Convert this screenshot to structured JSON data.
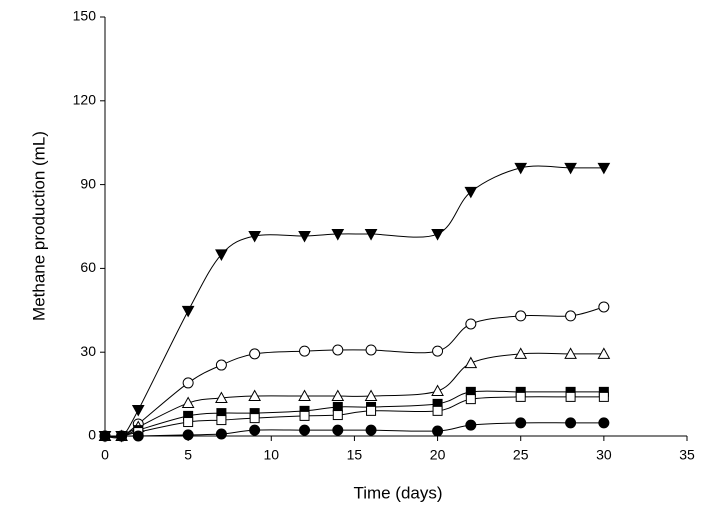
{
  "chart_data": {
    "type": "scatter",
    "smooth": true,
    "x_label": "Time (days)",
    "y_label": "Methane production (mL)",
    "x": [
      0,
      1,
      2,
      5,
      7,
      9,
      12,
      14,
      16,
      20,
      22,
      25,
      28,
      30
    ],
    "xlim": [
      0,
      35
    ],
    "xticks": [
      0,
      5,
      10,
      15,
      20,
      25,
      30,
      35
    ],
    "ylim": [
      0,
      150
    ],
    "yticks": [
      0,
      30,
      60,
      90,
      120,
      150
    ],
    "series": [
      {
        "color": "#000000",
        "marker": "triangle-down",
        "filled": true,
        "values": [
          0,
          0,
          9.3,
          44.8,
          65,
          71.6,
          71.6,
          72.3,
          72.3,
          72.3,
          87.4,
          96,
          96,
          96
        ]
      },
      {
        "color": "#000000",
        "marker": "circle",
        "filled": false,
        "values": [
          0,
          0,
          4.3,
          19,
          25.4,
          29.4,
          30.4,
          30.8,
          30.8,
          30.4,
          40.1,
          43,
          43,
          46.2
        ]
      },
      {
        "color": "#000000",
        "marker": "triangle-up",
        "filled": false,
        "values": [
          0,
          0,
          3.2,
          11.8,
          13.6,
          14.3,
          14.3,
          14.3,
          14.3,
          16.1,
          26.1,
          29.4,
          29.4,
          29.4
        ]
      },
      {
        "color": "#000000",
        "marker": "square",
        "filled": true,
        "values": [
          0,
          0,
          2.1,
          7.2,
          8.2,
          8.2,
          9,
          10.4,
          10.4,
          11.5,
          15.8,
          15.8,
          15.8,
          15.8
        ]
      },
      {
        "color": "#000000",
        "marker": "square",
        "filled": false,
        "values": [
          0,
          0,
          1.4,
          5,
          5.7,
          6.4,
          7.2,
          7.5,
          9,
          9,
          13.2,
          14,
          14,
          14
        ]
      },
      {
        "color": "#000000",
        "marker": "circle",
        "filled": true,
        "values": [
          0,
          0,
          0,
          0.4,
          0.7,
          2.1,
          2.1,
          2.1,
          2.1,
          1.8,
          3.9,
          4.7,
          4.7,
          4.7
        ]
      }
    ]
  }
}
